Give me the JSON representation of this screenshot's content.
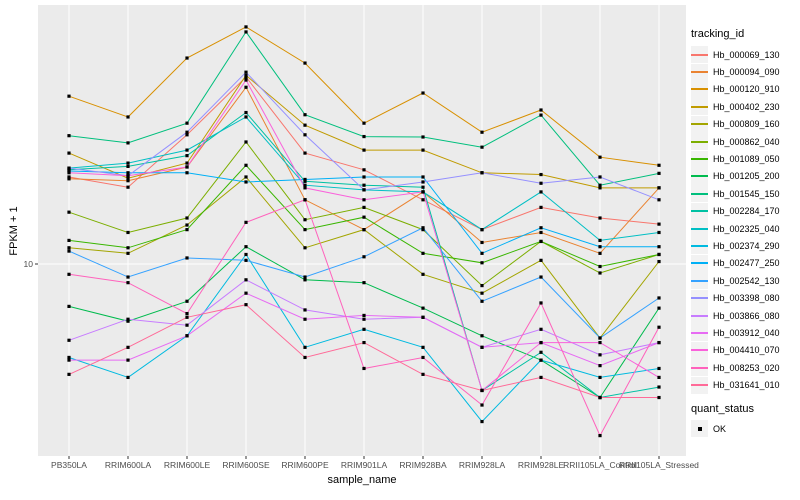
{
  "y_axis_title": "FPKM + 1",
  "x_axis_title": "sample_name",
  "y_tick_label": "10",
  "legend": {
    "tracking_title": "tracking_id",
    "quant_title": "quant_status",
    "quant_ok_label": "OK"
  },
  "colors": {
    "panel_bg": "#EBEBEB",
    "grid": "#FFFFFF",
    "tick_text": "#4D4D4D",
    "tick_mark": "#333333",
    "legend_key_bg": "#F2F2F2",
    "marker": "#000000"
  },
  "chart_data": {
    "type": "line",
    "title": "",
    "xlabel": "sample_name",
    "ylabel": "FPKM + 1",
    "yscale": "log10",
    "ytick_labels": [
      "10"
    ],
    "ylim": [
      2.3,
      90
    ],
    "grid": "white major gridlines on gray panel",
    "legend_position": "right",
    "marker": "black-square",
    "quant_status": {
      "title": "quant_status",
      "values": [
        "OK"
      ]
    },
    "categories": [
      "PB350LA",
      "RRIM600LA",
      "RRIM600LE",
      "RRIM600SE",
      "RRIM600PE",
      "RRIM901LA",
      "RRIM928BA",
      "RRIM928LA",
      "RRIM928LE",
      "RRII105LA_Control",
      "RRII105LA_Stressed"
    ],
    "series": [
      {
        "name": "Hb_000069_130",
        "color": "#F8766D",
        "values": [
          20.2,
          18.6,
          28.4,
          45.3,
          24.5,
          21.4,
          16.8,
          13.2,
          15.8,
          14.5,
          13.8
        ]
      },
      {
        "name": "Hb_000094_090",
        "color": "#EA8331",
        "values": [
          19.9,
          19.6,
          21.9,
          41.7,
          16.8,
          13.2,
          17.9,
          11.9,
          12.9,
          10.9,
          18.5
        ]
      },
      {
        "name": "Hb_000120_910",
        "color": "#D89000",
        "values": [
          38.8,
          32.8,
          52.8,
          67.9,
          50.7,
          31.2,
          39.8,
          29.0,
          34.7,
          23.7,
          22.2
        ]
      },
      {
        "name": "Hb_000402_230",
        "color": "#C09B00",
        "values": [
          24.5,
          20.0,
          22.6,
          45.9,
          30.7,
          25.1,
          25.1,
          20.9,
          20.6,
          18.5,
          18.5
        ]
      },
      {
        "name": "Hb_000809_160",
        "color": "#A3A500",
        "values": [
          11.4,
          10.9,
          13.7,
          20.2,
          11.4,
          13.2,
          9.2,
          7.9,
          10.3,
          5.5,
          10.2
        ]
      },
      {
        "name": "Hb_000862_040",
        "color": "#7CAE00",
        "values": [
          15.2,
          12.9,
          14.5,
          26.8,
          14.3,
          15.8,
          13.2,
          8.4,
          12.0,
          9.3,
          10.8
        ]
      },
      {
        "name": "Hb_001089_050",
        "color": "#39B600",
        "values": [
          12.1,
          11.4,
          13.2,
          22.2,
          13.2,
          14.6,
          10.9,
          10.1,
          12.0,
          9.8,
          10.8
        ]
      },
      {
        "name": "Hb_001205_200",
        "color": "#00BB4E",
        "values": [
          7.1,
          6.3,
          7.4,
          11.5,
          8.8,
          8.6,
          7.0,
          5.6,
          4.6,
          3.4,
          7.0
        ]
      },
      {
        "name": "Hb_001545_150",
        "color": "#00BF7D",
        "values": [
          28.2,
          26.6,
          31.2,
          65.2,
          33.4,
          28.0,
          27.9,
          25.7,
          33.3,
          18.9,
          20.8
        ]
      },
      {
        "name": "Hb_002284_170",
        "color": "#00C1A3",
        "values": [
          21.4,
          22.0,
          24.0,
          34.0,
          19.5,
          18.9,
          18.6,
          3.6,
          4.9,
          3.4,
          3.7
        ]
      },
      {
        "name": "Hb_002325_040",
        "color": "#00BFC4",
        "values": [
          21.7,
          22.6,
          25.1,
          32.8,
          18.9,
          18.2,
          17.9,
          13.2,
          17.9,
          12.1,
          12.9
        ]
      },
      {
        "name": "Hb_002374_290",
        "color": "#00BAE0",
        "values": [
          4.7,
          4.0,
          5.6,
          10.8,
          5.1,
          5.9,
          5.1,
          2.8,
          4.6,
          4.0,
          4.3
        ]
      },
      {
        "name": "Hb_002477_250",
        "color": "#00B0F6",
        "values": [
          21.2,
          20.9,
          20.9,
          19.4,
          19.8,
          20.2,
          20.2,
          10.9,
          13.4,
          11.5,
          11.5
        ]
      },
      {
        "name": "Hb_002542_130",
        "color": "#35A2FF",
        "values": [
          11.1,
          9.0,
          10.5,
          10.3,
          9.0,
          10.6,
          13.4,
          7.4,
          9.0,
          5.5,
          7.6
        ]
      },
      {
        "name": "Hb_003398_080",
        "color": "#9590FF",
        "values": [
          21.7,
          20.4,
          29.0,
          47.1,
          28.4,
          18.2,
          19.4,
          20.9,
          19.2,
          20.2,
          16.8
        ]
      },
      {
        "name": "Hb_003866_080",
        "color": "#C77CFF",
        "values": [
          5.4,
          6.4,
          6.1,
          8.8,
          6.9,
          6.4,
          6.5,
          5.1,
          5.9,
          4.8,
          5.3
        ]
      },
      {
        "name": "Hb_003912_040",
        "color": "#E76BF3",
        "values": [
          4.6,
          4.6,
          5.6,
          7.9,
          6.4,
          6.6,
          6.5,
          5.1,
          5.3,
          4.4,
          5.3
        ]
      },
      {
        "name": "Hb_004410_070",
        "color": "#FA62DB",
        "values": [
          20.9,
          20.4,
          21.9,
          44.2,
          18.5,
          16.8,
          17.9,
          3.6,
          5.3,
          5.3,
          4.0
        ]
      },
      {
        "name": "Hb_008253_020",
        "color": "#FF62BC",
        "values": [
          9.2,
          8.6,
          6.7,
          14.0,
          16.8,
          4.3,
          4.7,
          3.2,
          7.3,
          2.5,
          6.0
        ]
      },
      {
        "name": "Hb_031641_010",
        "color": "#FF6A98",
        "values": [
          4.1,
          5.1,
          6.5,
          7.2,
          4.7,
          5.3,
          4.1,
          3.6,
          4.0,
          3.4,
          3.4
        ]
      }
    ]
  }
}
